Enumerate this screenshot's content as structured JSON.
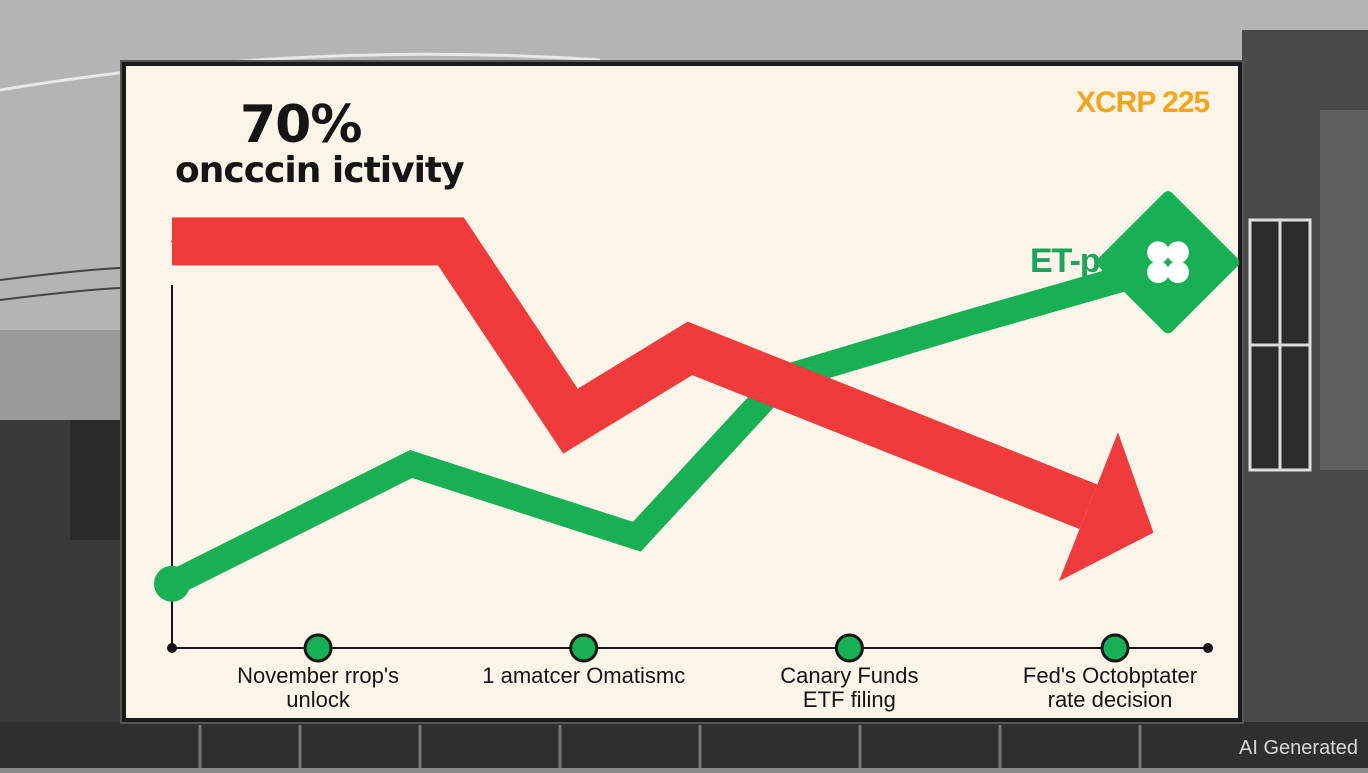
{
  "header": {
    "headline": "70%",
    "subhead": "oncccin ictivity",
    "tag_orange": "XCRP 225",
    "tag_green": "ET-pp5"
  },
  "watermark": "AI Generated",
  "colors": {
    "red_series": "#ef3b3b",
    "green_series": "#19b055",
    "axis": "#151515",
    "board": "#fbf5e9",
    "accent_orange": "#f4a51c"
  },
  "icons": [
    "xrp-logo-icon"
  ],
  "chart_data": {
    "type": "line",
    "title": "",
    "xlabel": "",
    "ylabel": "",
    "categories": [
      "November rrop's\nunlock",
      "1 amatcer Omatismc",
      "Canary Funds\nETF filing",
      "Fed's Octobptater\nrate decision"
    ],
    "milestone_x": [
      0.35,
      1.35,
      2.35,
      3.35
    ],
    "series": [
      {
        "x": [
          -0.2,
          0.7,
          1.55,
          2.1,
          2.8,
          3.7
        ],
        "values": [
          60,
          88,
          71,
          108,
          121,
          137
        ]
      },
      {
        "x": [
          -0.2,
          0.85,
          1.3,
          1.75,
          3.25
        ],
        "values": [
          140,
          140,
          98,
          115,
          78
        ]
      }
    ],
    "xlim": [
      -0.2,
      3.7
    ],
    "ylim": [
      45,
      145
    ],
    "legend": "none",
    "grid": false
  }
}
